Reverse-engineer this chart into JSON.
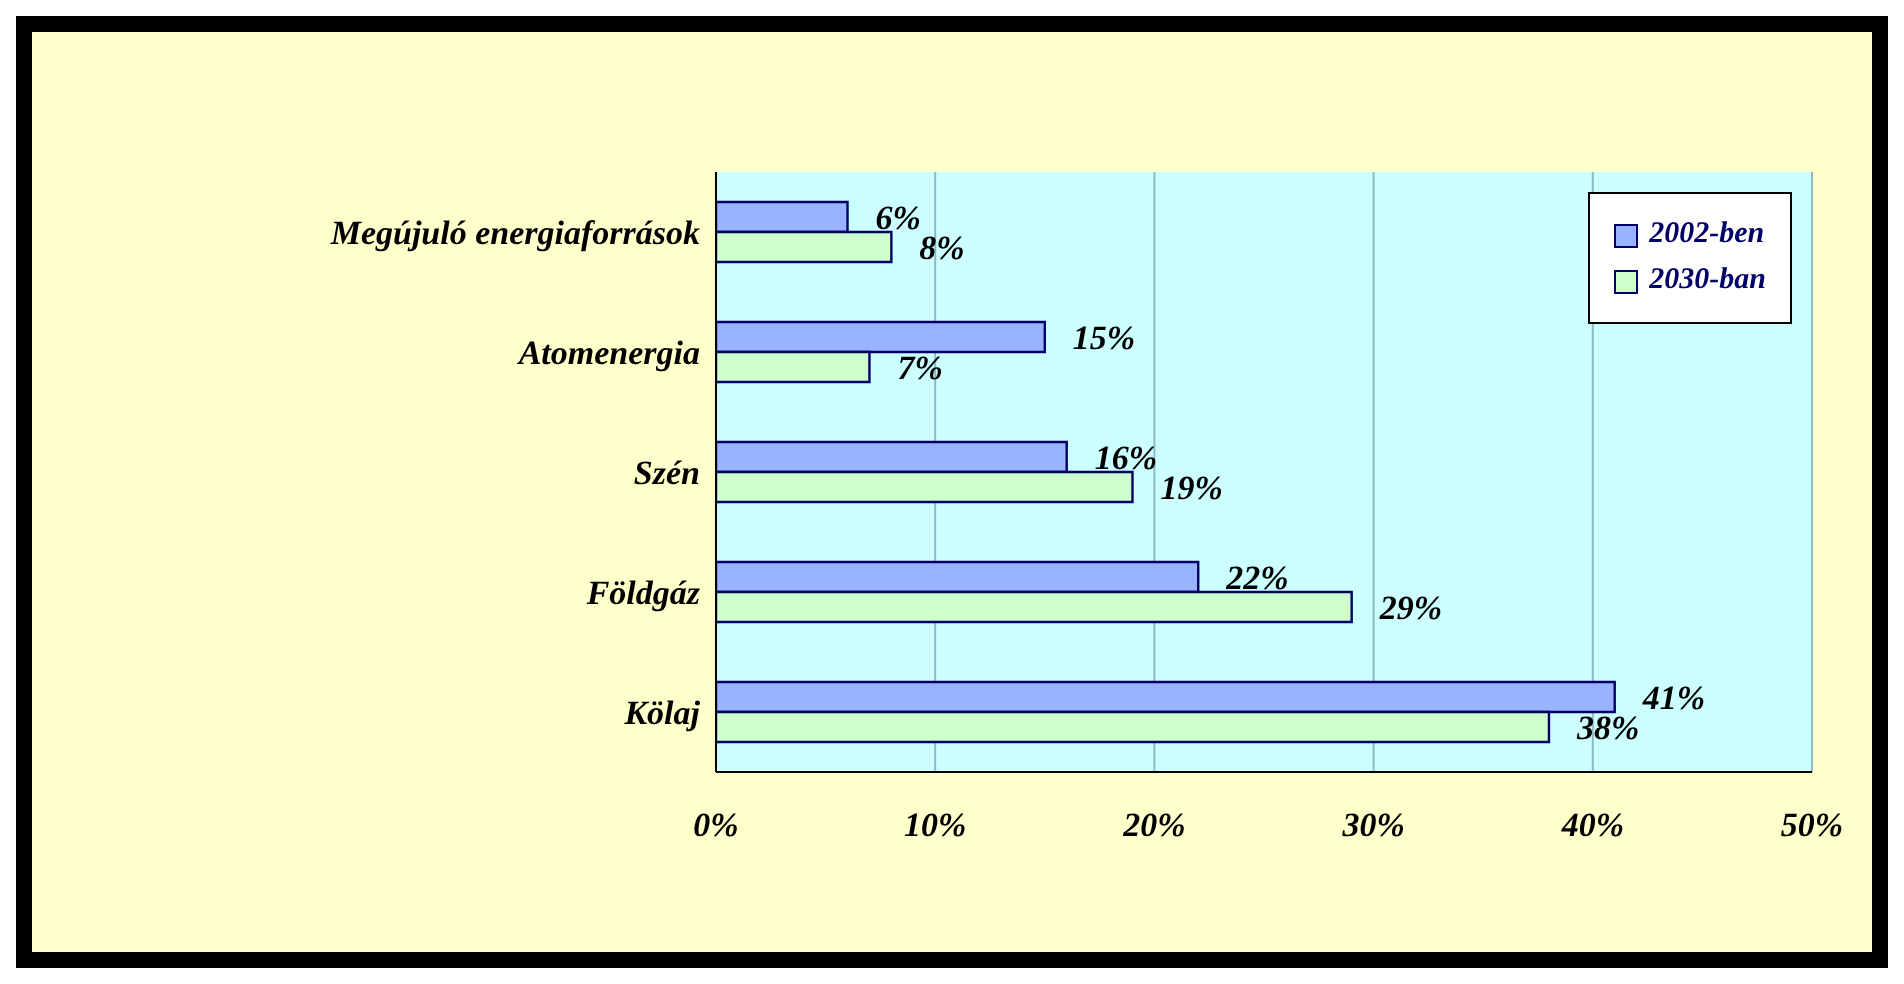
{
  "chart_data": {
    "type": "bar",
    "orientation": "horizontal",
    "categories": [
      "Megújuló energiaforrások",
      "Atomenergia",
      "Szén",
      "Földgáz",
      "Kölaj"
    ],
    "series": [
      {
        "name": "2002-ben",
        "color": "#99b3ff",
        "values": [
          6,
          15,
          16,
          22,
          41
        ],
        "value_labels": [
          "6%",
          "15%",
          "16%",
          "22%",
          "41%"
        ]
      },
      {
        "name": "2030-ban",
        "color": "#ccffcc",
        "values": [
          8,
          7,
          19,
          29,
          38
        ],
        "value_labels": [
          "8%",
          "7%",
          "19%",
          "29%",
          "38%"
        ]
      }
    ],
    "xlim": [
      0,
      50
    ],
    "xticks": [
      {
        "value": 0,
        "label": "0%"
      },
      {
        "value": 10,
        "label": "10%"
      },
      {
        "value": 20,
        "label": "20%"
      },
      {
        "value": 30,
        "label": "30%"
      },
      {
        "value": 40,
        "label": "40%"
      },
      {
        "value": 50,
        "label": "50%"
      }
    ],
    "grid": "x",
    "legend": "top right"
  }
}
